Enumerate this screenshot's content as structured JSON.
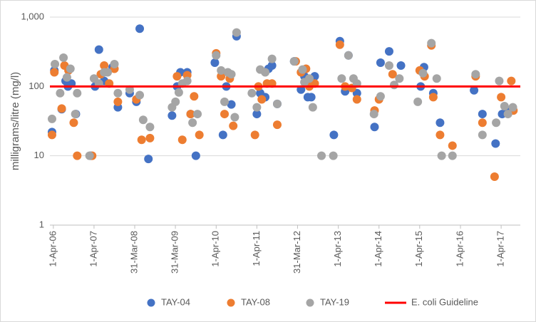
{
  "chart_data": {
    "type": "scatter",
    "ylabel": "milligrams/litre (mg/l)",
    "yscale": "log",
    "grid": true,
    "legend": "bottom",
    "xlim": [
      "2006-03-01",
      "2017-09-20"
    ],
    "xticks": [
      {
        "value": "2006-04-01",
        "label": "1-Apr-06"
      },
      {
        "value": "2007-04-01",
        "label": "1-Apr-07"
      },
      {
        "value": "2008-03-31",
        "label": "31-Mar-08"
      },
      {
        "value": "2009-03-31",
        "label": "31-Mar-09"
      },
      {
        "value": "2010-04-01",
        "label": "1-Apr-10"
      },
      {
        "value": "2011-04-01",
        "label": "1-Apr-11"
      },
      {
        "value": "2012-03-31",
        "label": "31-Mar-12"
      },
      {
        "value": "2013-04-01",
        "label": "1-Apr-13"
      },
      {
        "value": "2014-04-01",
        "label": "1-Apr-14"
      },
      {
        "value": "2015-04-01",
        "label": "1-Apr-15"
      },
      {
        "value": "2016-04-01",
        "label": "1-Apr-16"
      },
      {
        "value": "2017-04-01",
        "label": "1-Apr-17"
      }
    ],
    "ylim": [
      1,
      1000
    ],
    "yticks": [
      1,
      10,
      100,
      {
        "value": 1000,
        "label": "1,000"
      }
    ],
    "series": [
      {
        "name": "TAY-04",
        "color": "#4472c4",
        "x": [
          "2006-03-20",
          "2006-04-10",
          "2006-06-15",
          "2006-07-20",
          "2006-08-10",
          "2006-09-10",
          "2006-10-20",
          "2007-03-01",
          "2007-04-10",
          "2007-05-15",
          "2007-07-01",
          "2007-09-15",
          "2007-11-01",
          "2008-02-15",
          "2008-04-15",
          "2008-05-15",
          "2008-08-01",
          "2009-03-01",
          "2009-04-15",
          "2009-05-15",
          "2009-07-15",
          "2009-08-15",
          "2009-10-01",
          "2010-03-20",
          "2010-06-01",
          "2010-07-01",
          "2010-08-15",
          "2010-10-01",
          "2011-04-01",
          "2011-05-01",
          "2011-06-15",
          "2011-07-15",
          "2011-08-15",
          "2011-10-01",
          "2012-03-01",
          "2012-05-01",
          "2012-06-01",
          "2012-07-01",
          "2012-08-01",
          "2012-09-01",
          "2013-02-20",
          "2013-04-15",
          "2013-06-01",
          "2013-07-01",
          "2013-09-15",
          "2014-02-20",
          "2014-04-15",
          "2014-07-01",
          "2014-10-15",
          "2015-04-10",
          "2015-05-10",
          "2015-08-01",
          "2015-10-01",
          "2016-08-01",
          "2016-10-15",
          "2017-02-10",
          "2017-04-10",
          "2017-06-01",
          "2017-07-15"
        ],
        "values": [
          22,
          170,
          47,
          120,
          100,
          110,
          40,
          10,
          100,
          340,
          120,
          190,
          50,
          80,
          60,
          680,
          9,
          38,
          100,
          160,
          160,
          40,
          10,
          220,
          20,
          100,
          55,
          530,
          40,
          80,
          70,
          180,
          200,
          56,
          230,
          90,
          140,
          70,
          70,
          140,
          20,
          450,
          85,
          280,
          80,
          26,
          220,
          320,
          200,
          100,
          190,
          80,
          30,
          88,
          40,
          15,
          40,
          45,
          48
        ]
      },
      {
        "name": "TAY-08",
        "color": "#ed7d31",
        "x": [
          "2006-03-20",
          "2006-04-10",
          "2006-06-15",
          "2006-07-10",
          "2006-08-15",
          "2006-10-01",
          "2006-11-01",
          "2007-03-15",
          "2007-06-01",
          "2007-07-01",
          "2007-08-15",
          "2007-10-01",
          "2007-11-01",
          "2008-04-15",
          "2008-06-01",
          "2008-08-15",
          "2009-04-15",
          "2009-06-01",
          "2009-07-15",
          "2009-08-15",
          "2009-09-15",
          "2009-11-01",
          "2010-04-01",
          "2010-05-15",
          "2010-06-15",
          "2010-08-01",
          "2010-09-01",
          "2011-03-15",
          "2011-04-15",
          "2011-05-15",
          "2011-07-01",
          "2011-08-15",
          "2011-10-01",
          "2012-03-15",
          "2012-05-01",
          "2012-06-15",
          "2012-07-15",
          "2012-09-01",
          "2013-04-15",
          "2013-06-01",
          "2013-08-01",
          "2013-09-15",
          "2014-02-20",
          "2014-04-01",
          "2014-08-01",
          "2015-04-01",
          "2015-05-15",
          "2015-07-15",
          "2015-08-01",
          "2015-10-01",
          "2016-01-20",
          "2016-08-15",
          "2016-10-15",
          "2017-02-01",
          "2017-04-01",
          "2017-07-01",
          "2017-07-20"
        ],
        "values": [
          20,
          160,
          48,
          200,
          170,
          30,
          10,
          10,
          150,
          200,
          110,
          180,
          60,
          65,
          17,
          18,
          140,
          17,
          145,
          40,
          72,
          20,
          300,
          140,
          40,
          130,
          27,
          20,
          100,
          65,
          110,
          110,
          28,
          230,
          160,
          180,
          100,
          110,
          400,
          100,
          95,
          65,
          45,
          65,
          150,
          170,
          140,
          390,
          70,
          20,
          14,
          140,
          30,
          5,
          70,
          120,
          45
        ]
      },
      {
        "name": "TAY-19",
        "color": "#a5a5a5",
        "x": [
          "2006-03-20",
          "2006-04-15",
          "2006-06-01",
          "2006-07-01",
          "2006-08-01",
          "2006-09-01",
          "2006-10-15",
          "2006-11-01",
          "2007-02-20",
          "2007-04-01",
          "2007-05-15",
          "2007-07-01",
          "2007-08-01",
          "2007-10-01",
          "2007-11-01",
          "2008-02-15",
          "2008-05-15",
          "2008-06-15",
          "2008-08-15",
          "2009-03-01",
          "2009-04-01",
          "2009-05-01",
          "2009-06-01",
          "2009-07-15",
          "2009-09-01",
          "2009-10-15",
          "2010-04-01",
          "2010-05-15",
          "2010-06-15",
          "2010-07-15",
          "2010-08-15",
          "2010-09-15",
          "2010-10-01",
          "2011-02-15",
          "2011-04-01",
          "2011-05-01",
          "2011-06-15",
          "2011-08-15",
          "2011-10-01",
          "2012-03-01",
          "2012-05-15",
          "2012-06-01",
          "2012-07-15",
          "2012-08-15",
          "2012-11-01",
          "2013-02-15",
          "2013-05-01",
          "2013-07-01",
          "2013-08-15",
          "2013-09-15",
          "2014-02-15",
          "2014-04-15",
          "2014-07-01",
          "2014-08-15",
          "2014-10-01",
          "2015-03-15",
          "2015-05-01",
          "2015-07-15",
          "2015-09-01",
          "2015-10-15",
          "2016-01-20",
          "2016-08-15",
          "2016-10-15",
          "2017-02-15",
          "2017-03-15",
          "2017-05-01",
          "2017-06-01",
          "2017-07-15"
        ],
        "values": [
          34,
          210,
          80,
          260,
          135,
          180,
          40,
          80,
          10,
          130,
          110,
          160,
          160,
          210,
          80,
          90,
          75,
          33,
          26,
          50,
          60,
          82,
          110,
          120,
          30,
          40,
          280,
          170,
          60,
          160,
          150,
          36,
          600,
          80,
          50,
          175,
          160,
          250,
          56,
          230,
          175,
          115,
          130,
          50,
          10,
          10,
          130,
          280,
          130,
          110,
          40,
          72,
          200,
          105,
          130,
          60,
          155,
          420,
          130,
          10,
          10,
          150,
          20,
          30,
          120,
          52,
          40,
          50
        ]
      },
      {
        "name": "E. coli Guideline",
        "color": "#ff0000",
        "type": "line",
        "x": [
          "2006-03-01",
          "2017-09-20"
        ],
        "values": [
          100,
          100
        ]
      }
    ]
  }
}
